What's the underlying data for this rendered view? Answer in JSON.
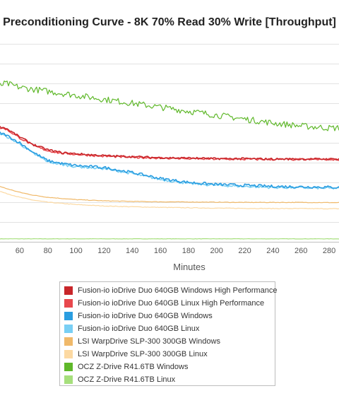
{
  "chart_data": {
    "type": "line",
    "title": "Preconditioning Curve - 8K 70% Read 30% Write [Throughput]",
    "xlabel": "Minutes",
    "ylabel": "",
    "xlim": [
      46,
      287
    ],
    "ylim": [
      0,
      100
    ],
    "x_ticks": [
      60,
      80,
      100,
      120,
      140,
      160,
      180,
      200,
      220,
      240,
      260,
      280
    ],
    "grid": true,
    "legend_position": "bottom",
    "series": [
      {
        "name": "Fusion-io ioDrive Duo 640GB Windows High Performance",
        "color": "#c8262a",
        "noise": 0.5,
        "x": [
          46,
          50,
          60,
          70,
          80,
          90,
          100,
          120,
          140,
          160,
          180,
          200,
          220,
          240,
          260,
          280,
          287
        ],
        "y": [
          58,
          57.5,
          53,
          49,
          46.5,
          45,
          44.5,
          43.5,
          43,
          42.5,
          42.3,
          42,
          42,
          41.8,
          41.8,
          41.8,
          41.8
        ]
      },
      {
        "name": "Fusion-io ioDrive Duo 640GB Linux High Performance",
        "color": "#e8484d",
        "noise": 0.5,
        "x": [
          46,
          50,
          60,
          70,
          80,
          90,
          100,
          120,
          140,
          160,
          180,
          200,
          220,
          240,
          260,
          280,
          287
        ],
        "y": [
          57.5,
          57,
          52.5,
          48.5,
          46,
          44.7,
          44.2,
          43.2,
          42.7,
          42.3,
          42,
          41.8,
          41.7,
          41.6,
          41.6,
          41.6,
          41.6
        ]
      },
      {
        "name": "Fusion-io ioDrive Duo 640GB Windows",
        "color": "#2a9de0",
        "noise": 0.7,
        "x": [
          46,
          50,
          60,
          70,
          80,
          90,
          100,
          120,
          140,
          160,
          180,
          200,
          220,
          240,
          260,
          280,
          287
        ],
        "y": [
          55,
          54,
          50,
          45,
          41,
          39.5,
          38.5,
          37.5,
          35,
          32,
          30,
          29,
          28.5,
          28,
          27.8,
          27.6,
          27.5
        ]
      },
      {
        "name": "Fusion-io ioDrive Duo 640GB Linux",
        "color": "#79cff4",
        "noise": 0.6,
        "x": [
          46,
          50,
          60,
          70,
          80,
          90,
          100,
          120,
          140,
          160,
          180,
          200,
          220,
          240,
          260,
          280,
          287
        ],
        "y": [
          54.5,
          53.5,
          49.5,
          44.5,
          40.5,
          39,
          38,
          37,
          34.5,
          31.5,
          29.5,
          28.5,
          28,
          27.5,
          27.3,
          27.1,
          27
        ]
      },
      {
        "name": "LSI WarpDrive SLP-300 300GB Windows",
        "color": "#f0b96a",
        "noise": 0.15,
        "x": [
          46,
          50,
          60,
          70,
          80,
          100,
          120,
          140,
          160,
          180,
          200,
          220,
          240,
          260,
          280,
          287
        ],
        "y": [
          28,
          27,
          25,
          23.5,
          22.5,
          21.3,
          20.7,
          20.4,
          20.2,
          20.1,
          20,
          19.9,
          19.9,
          19.9,
          19.8,
          19.8
        ]
      },
      {
        "name": "LSI WarpDrive SLP-300 300GB Linux",
        "color": "#fcd9a2",
        "noise": 0.15,
        "x": [
          46,
          50,
          60,
          70,
          80,
          100,
          120,
          140,
          160,
          180,
          200,
          220,
          240,
          260,
          280,
          287
        ],
        "y": [
          25.5,
          24.5,
          22.5,
          21,
          20,
          18.8,
          18.1,
          17.7,
          17.4,
          17.2,
          17,
          16.9,
          16.8,
          16.8,
          16.7,
          16.7
        ]
      },
      {
        "name": "OCZ Z-Drive R41.6TB Windows",
        "color": "#5fb82a",
        "noise": 1.6,
        "x": [
          46,
          50,
          60,
          70,
          80,
          90,
          100,
          120,
          140,
          160,
          180,
          200,
          220,
          240,
          260,
          280,
          287
        ],
        "y": [
          79,
          80,
          78,
          77,
          76,
          75,
          74,
          72,
          70,
          68,
          66,
          64,
          62,
          60,
          58.5,
          57.5,
          57.5
        ]
      },
      {
        "name": "OCZ Z-Drive R41.6TB Linux",
        "color": "#a6df7c",
        "noise": 0.08,
        "x": [
          46,
          100,
          150,
          200,
          250,
          287
        ],
        "y": [
          1.5,
          1.5,
          1.5,
          1.5,
          1.5,
          1.5
        ]
      }
    ]
  }
}
